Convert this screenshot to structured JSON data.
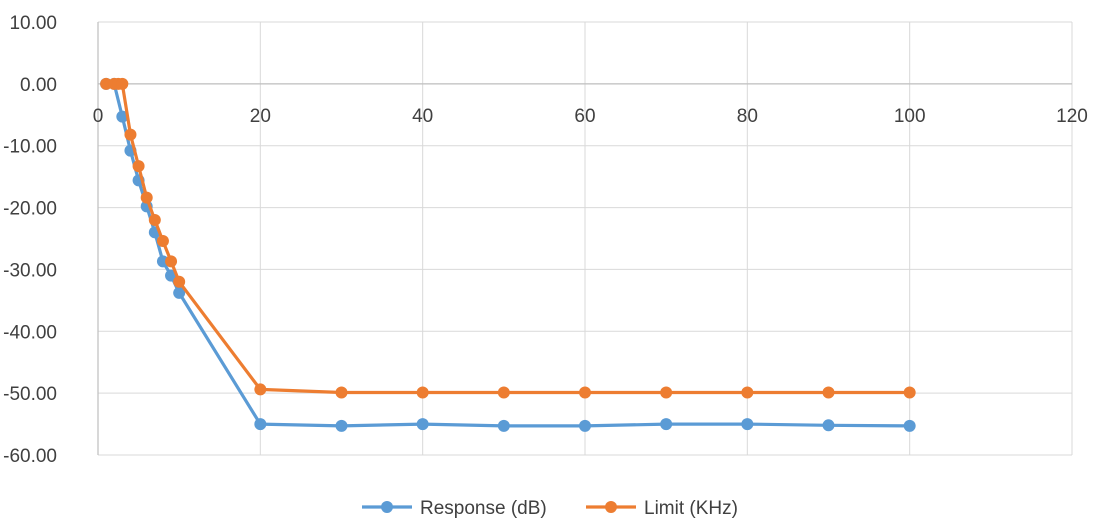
{
  "chart_data": {
    "type": "line",
    "title": "",
    "xlabel": "",
    "ylabel": "",
    "xlim": [
      0,
      120
    ],
    "ylim": [
      -60,
      10
    ],
    "x_ticks": [
      0,
      20,
      40,
      60,
      80,
      100,
      120
    ],
    "y_ticks": [
      10,
      0,
      -10,
      -20,
      -30,
      -40,
      -50,
      -60
    ],
    "y_tick_labels": [
      "10.00",
      "0.00",
      "-10.00",
      "-20.00",
      "-30.00",
      "-40.00",
      "-50.00",
      "-60.00"
    ],
    "x_tick_labels": [
      "0",
      "20",
      "40",
      "60",
      "80",
      "100",
      "120"
    ],
    "grid": "vertical and horizontal",
    "legend_position": "bottom",
    "series": [
      {
        "name": "Response (dB)",
        "color": "#5b9bd5",
        "points": [
          [
            1,
            0
          ],
          [
            2,
            0
          ],
          [
            3,
            -5.3
          ],
          [
            4,
            -10.8
          ],
          [
            5,
            -15.6
          ],
          [
            6,
            -19.8
          ],
          [
            7,
            -24
          ],
          [
            8,
            -28.7
          ],
          [
            9,
            -31
          ],
          [
            10,
            -33.8
          ],
          [
            20,
            -55
          ],
          [
            30,
            -55.3
          ],
          [
            40,
            -55
          ],
          [
            50,
            -55.3
          ],
          [
            60,
            -55.3
          ],
          [
            70,
            -55
          ],
          [
            80,
            -55
          ],
          [
            90,
            -55.2
          ],
          [
            100,
            -55.3
          ]
        ]
      },
      {
        "name": "Limit (KHz)",
        "color": "#ed7d31",
        "points": [
          [
            1,
            0
          ],
          [
            2,
            0
          ],
          [
            2.5,
            0
          ],
          [
            3,
            0
          ],
          [
            4,
            -8.2
          ],
          [
            5,
            -13.3
          ],
          [
            6,
            -18.4
          ],
          [
            7,
            -22
          ],
          [
            8,
            -25.4
          ],
          [
            9,
            -28.7
          ],
          [
            10,
            -32
          ],
          [
            20,
            -49.4
          ],
          [
            30,
            -49.9
          ],
          [
            40,
            -49.9
          ],
          [
            50,
            -49.9
          ],
          [
            60,
            -49.9
          ],
          [
            70,
            -49.9
          ],
          [
            80,
            -49.9
          ],
          [
            90,
            -49.9
          ],
          [
            100,
            -49.9
          ]
        ]
      }
    ]
  }
}
